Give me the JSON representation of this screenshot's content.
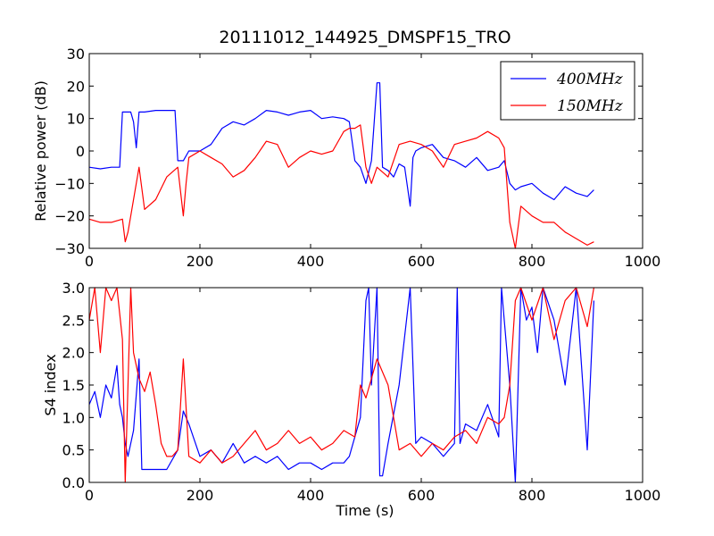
{
  "chart_data": [
    {
      "type": "line",
      "title": "20111012_144925_DMSPF15_TRO",
      "xlabel": "",
      "ylabel": "Relative power (dB)",
      "xlim": [
        0,
        1000
      ],
      "ylim": [
        -30,
        30
      ],
      "xticks": [
        "0",
        "200",
        "400",
        "600",
        "800",
        "1000"
      ],
      "yticks": [
        "−30",
        "−20",
        "−10",
        "0",
        "10",
        "20",
        "30"
      ],
      "legend_position": "top-right",
      "series": [
        {
          "name": "400MHz",
          "color": "#0000ff",
          "x": [
            0,
            20,
            40,
            55,
            60,
            75,
            80,
            85,
            90,
            100,
            120,
            140,
            155,
            160,
            170,
            180,
            200,
            220,
            240,
            260,
            280,
            300,
            320,
            340,
            360,
            380,
            400,
            420,
            440,
            460,
            470,
            480,
            490,
            500,
            510,
            520,
            525,
            530,
            540,
            550,
            560,
            570,
            580,
            585,
            590,
            600,
            620,
            640,
            660,
            680,
            700,
            720,
            740,
            750,
            760,
            770,
            780,
            800,
            820,
            840,
            860,
            880,
            900,
            912
          ],
          "y": [
            -5,
            -5.5,
            -5,
            -5,
            12,
            12,
            9,
            1,
            12,
            12,
            12.5,
            12.5,
            12.5,
            -3,
            -3,
            0,
            0,
            2,
            7,
            9,
            8,
            10,
            12.5,
            12,
            11,
            12,
            12.5,
            10,
            10.5,
            10,
            9,
            -3,
            -5,
            -10,
            -3,
            21,
            21,
            -5,
            -6,
            -8,
            -4,
            -5,
            -17,
            -2,
            0,
            1,
            2,
            -2,
            -3,
            -5,
            -2,
            -6,
            -5,
            -3,
            -10,
            -12,
            -11,
            -10,
            -13,
            -15,
            -11,
            -13,
            -14,
            -12
          ]
        },
        {
          "name": "150MHz",
          "color": "#ff0000",
          "x": [
            0,
            20,
            40,
            60,
            65,
            70,
            75,
            80,
            85,
            90,
            100,
            120,
            140,
            160,
            170,
            175,
            180,
            200,
            220,
            240,
            260,
            280,
            300,
            320,
            340,
            360,
            380,
            400,
            420,
            440,
            460,
            470,
            480,
            490,
            500,
            510,
            520,
            540,
            560,
            580,
            600,
            620,
            640,
            660,
            680,
            700,
            720,
            740,
            750,
            760,
            770,
            780,
            800,
            820,
            840,
            860,
            880,
            900,
            912
          ],
          "y": [
            -21,
            -22,
            -22,
            -21,
            -28,
            -25,
            -20,
            -15,
            -10,
            -5,
            -18,
            -15,
            -8,
            -5,
            -20,
            -10,
            -2,
            0,
            -2,
            -4,
            -8,
            -6,
            -2,
            3,
            2,
            -5,
            -2,
            0,
            -1,
            0,
            6,
            7,
            7,
            8,
            -5,
            -10,
            -5,
            -8,
            2,
            3,
            2,
            0,
            -5,
            2,
            3,
            4,
            6,
            4,
            1,
            -22,
            -30,
            -17,
            -20,
            -22,
            -22,
            -25,
            -27,
            -29,
            -28
          ]
        }
      ]
    },
    {
      "type": "line",
      "title": "",
      "xlabel": "Time (s)",
      "ylabel": "S4 index",
      "xlim": [
        0,
        1000
      ],
      "ylim": [
        0,
        3
      ],
      "xticks": [
        "0",
        "200",
        "400",
        "600",
        "800",
        "1000"
      ],
      "yticks": [
        "0.0",
        "0.5",
        "1.0",
        "1.5",
        "2.0",
        "2.5",
        "3.0"
      ],
      "series": [
        {
          "name": "400MHz",
          "color": "#0000ff",
          "x": [
            0,
            10,
            20,
            30,
            40,
            50,
            55,
            60,
            65,
            70,
            80,
            90,
            95,
            100,
            120,
            140,
            160,
            170,
            180,
            200,
            220,
            240,
            260,
            280,
            300,
            320,
            340,
            360,
            380,
            400,
            420,
            440,
            460,
            470,
            480,
            490,
            500,
            505,
            510,
            520,
            525,
            530,
            540,
            560,
            580,
            590,
            600,
            620,
            640,
            660,
            665,
            670,
            680,
            700,
            720,
            740,
            745,
            760,
            770,
            780,
            790,
            800,
            810,
            820,
            840,
            860,
            880,
            900,
            912
          ],
          "y": [
            1.2,
            1.4,
            1.0,
            1.5,
            1.3,
            1.8,
            1.2,
            1.0,
            0.6,
            0.4,
            0.8,
            1.9,
            0.2,
            0.2,
            0.2,
            0.2,
            0.5,
            1.1,
            0.9,
            0.4,
            0.5,
            0.3,
            0.6,
            0.3,
            0.4,
            0.3,
            0.4,
            0.2,
            0.3,
            0.3,
            0.2,
            0.3,
            0.3,
            0.4,
            0.7,
            1.0,
            2.8,
            3.0,
            1.5,
            3.0,
            0.1,
            0.1,
            0.6,
            1.5,
            3.0,
            0.6,
            0.7,
            0.6,
            0.4,
            0.6,
            3.0,
            0.6,
            0.9,
            0.8,
            1.2,
            0.7,
            3.0,
            1.5,
            0.0,
            3.0,
            2.5,
            2.7,
            2.0,
            3.0,
            2.5,
            1.5,
            3.0,
            0.5,
            2.8
          ]
        },
        {
          "name": "150MHz",
          "color": "#ff0000",
          "x": [
            0,
            10,
            20,
            30,
            40,
            50,
            60,
            65,
            70,
            75,
            80,
            90,
            100,
            110,
            120,
            130,
            140,
            150,
            160,
            170,
            180,
            200,
            220,
            240,
            260,
            280,
            300,
            320,
            340,
            360,
            380,
            400,
            420,
            440,
            460,
            480,
            490,
            500,
            520,
            540,
            560,
            580,
            600,
            620,
            640,
            660,
            680,
            700,
            720,
            740,
            750,
            760,
            770,
            780,
            800,
            820,
            840,
            860,
            880,
            900,
            912
          ],
          "y": [
            2.5,
            3.0,
            2.0,
            3.0,
            2.8,
            3.0,
            2.2,
            0.0,
            1.5,
            3.0,
            2.0,
            1.6,
            1.4,
            1.7,
            1.2,
            0.6,
            0.4,
            0.4,
            0.5,
            1.9,
            0.4,
            0.3,
            0.5,
            0.3,
            0.4,
            0.6,
            0.8,
            0.5,
            0.6,
            0.8,
            0.6,
            0.7,
            0.5,
            0.6,
            0.8,
            0.7,
            1.5,
            1.3,
            1.9,
            1.5,
            0.5,
            0.6,
            0.4,
            0.6,
            0.5,
            0.7,
            0.8,
            0.6,
            1.0,
            0.9,
            1.0,
            1.5,
            2.8,
            3.0,
            2.5,
            3.0,
            2.2,
            2.8,
            3.0,
            2.4,
            3.0
          ]
        }
      ]
    }
  ]
}
